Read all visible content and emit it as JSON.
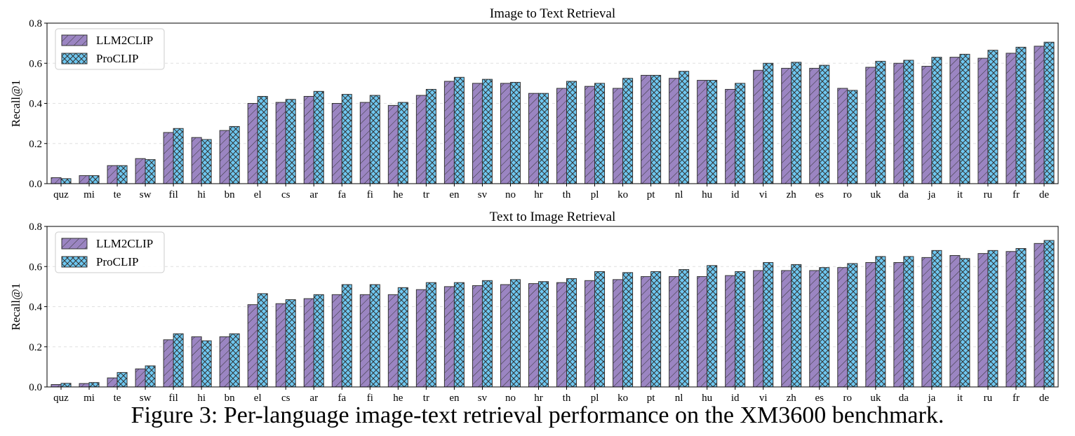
{
  "caption": "Figure 3: Per-language image-text retrieval performance on the XM3600 benchmark.",
  "colors": {
    "llm2clip": "#9b85c2",
    "proclip": "#6ec8f2",
    "edge": "#333333",
    "grid": "#e0e0e0"
  },
  "chart_data": [
    {
      "type": "bar",
      "title": "Image to Text Retrieval",
      "ylabel": "Recall@1",
      "xlabel": "",
      "ylim": [
        0,
        0.8
      ],
      "yticks": [
        "0.0",
        "0.2",
        "0.4",
        "0.6",
        "0.8"
      ],
      "grid": true,
      "legend_position": "top-left",
      "categories": [
        "quz",
        "mi",
        "te",
        "sw",
        "fil",
        "hi",
        "bn",
        "el",
        "cs",
        "ar",
        "fa",
        "fi",
        "he",
        "tr",
        "en",
        "sv",
        "no",
        "hr",
        "th",
        "pl",
        "ko",
        "pt",
        "nl",
        "hu",
        "id",
        "vi",
        "zh",
        "es",
        "ro",
        "uk",
        "da",
        "ja",
        "it",
        "ru",
        "fr",
        "de"
      ],
      "series": [
        {
          "name": "LLM2CLIP",
          "hatch": "diag",
          "values": [
            0.03,
            0.04,
            0.09,
            0.125,
            0.255,
            0.23,
            0.265,
            0.4,
            0.405,
            0.435,
            0.4,
            0.405,
            0.39,
            0.44,
            0.51,
            0.5,
            0.5,
            0.45,
            0.475,
            0.485,
            0.475,
            0.54,
            0.525,
            0.515,
            0.47,
            0.565,
            0.575,
            0.575,
            0.475,
            0.58,
            0.6,
            0.585,
            0.63,
            0.625,
            0.65,
            0.685
          ]
        },
        {
          "name": "ProCLIP",
          "hatch": "cross",
          "values": [
            0.025,
            0.04,
            0.09,
            0.12,
            0.275,
            0.22,
            0.285,
            0.435,
            0.42,
            0.46,
            0.445,
            0.44,
            0.405,
            0.47,
            0.53,
            0.52,
            0.505,
            0.45,
            0.51,
            0.5,
            0.525,
            0.54,
            0.56,
            0.515,
            0.5,
            0.6,
            0.605,
            0.59,
            0.465,
            0.61,
            0.615,
            0.63,
            0.645,
            0.665,
            0.68,
            0.705
          ]
        }
      ]
    },
    {
      "type": "bar",
      "title": "Text to Image Retrieval",
      "ylabel": "Recall@1",
      "xlabel": "",
      "ylim": [
        0,
        0.8
      ],
      "yticks": [
        "0.0",
        "0.2",
        "0.4",
        "0.6",
        "0.8"
      ],
      "grid": true,
      "legend_position": "top-left",
      "categories": [
        "quz",
        "mi",
        "te",
        "sw",
        "fil",
        "hi",
        "bn",
        "el",
        "cs",
        "ar",
        "fa",
        "fi",
        "he",
        "tr",
        "en",
        "sv",
        "no",
        "hr",
        "th",
        "pl",
        "ko",
        "pt",
        "nl",
        "hu",
        "id",
        "vi",
        "zh",
        "es",
        "ro",
        "uk",
        "da",
        "ja",
        "it",
        "ru",
        "fr",
        "de"
      ],
      "series": [
        {
          "name": "LLM2CLIP",
          "hatch": "diag",
          "values": [
            0.012,
            0.017,
            0.045,
            0.09,
            0.235,
            0.25,
            0.25,
            0.41,
            0.415,
            0.44,
            0.46,
            0.46,
            0.46,
            0.485,
            0.5,
            0.505,
            0.51,
            0.515,
            0.52,
            0.53,
            0.535,
            0.55,
            0.55,
            0.55,
            0.555,
            0.58,
            0.58,
            0.58,
            0.595,
            0.62,
            0.62,
            0.645,
            0.655,
            0.665,
            0.675,
            0.715
          ]
        },
        {
          "name": "ProCLIP",
          "hatch": "cross",
          "values": [
            0.018,
            0.022,
            0.072,
            0.105,
            0.265,
            0.23,
            0.265,
            0.465,
            0.435,
            0.46,
            0.51,
            0.51,
            0.495,
            0.52,
            0.52,
            0.53,
            0.535,
            0.525,
            0.54,
            0.575,
            0.57,
            0.575,
            0.585,
            0.605,
            0.575,
            0.62,
            0.61,
            0.595,
            0.615,
            0.65,
            0.65,
            0.68,
            0.64,
            0.68,
            0.69,
            0.73
          ]
        }
      ]
    }
  ]
}
